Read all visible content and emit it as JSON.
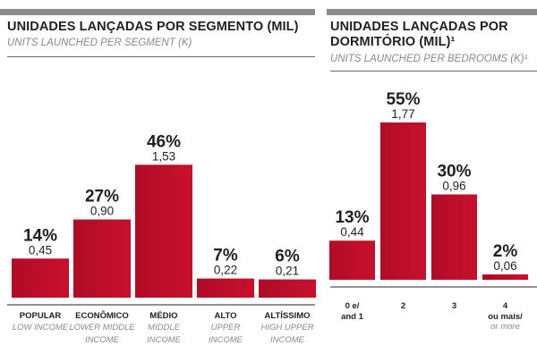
{
  "chart_data": [
    {
      "type": "bar",
      "title": "UNIDADES LANÇADAS POR SEGMENTO (MIL)",
      "subtitle": "UNITS LAUNCHED PER SEGMENT (K)",
      "categories": [
        {
          "pt": "POPULAR",
          "en": [
            "LOW INCOME"
          ]
        },
        {
          "pt": "ECONÔMICO",
          "en": [
            "LOWER MIDDLE",
            "INCOME"
          ]
        },
        {
          "pt": "MÉDIO",
          "en": [
            "MIDDLE",
            "INCOME"
          ]
        },
        {
          "pt": "ALTO",
          "en": [
            "UPPER",
            "INCOME"
          ]
        },
        {
          "pt": "ALTÍSSIMO",
          "en": [
            "HIGH UPPER",
            "INCOME"
          ]
        }
      ],
      "values": [
        0.45,
        0.9,
        1.53,
        0.22,
        0.21
      ],
      "value_labels": [
        "0,45",
        "0,90",
        "1,53",
        "0,22",
        "0,21"
      ],
      "percent_labels": [
        "14%",
        "27%",
        "46%",
        "7%",
        "6%"
      ],
      "bar_color": "#c8102e",
      "ylim": [
        0,
        1.77
      ],
      "grid": false
    },
    {
      "type": "bar",
      "title": "UNIDADES LANÇADAS POR DORMITÓRIO (MIL)¹",
      "subtitle": "UNITS LAUNCHED PER BEDROOMS (K)¹",
      "categories": [
        {
          "pt": "0 e/",
          "pt2": "and 1"
        },
        {
          "pt": "2"
        },
        {
          "pt": "3"
        },
        {
          "pt": "4",
          "pt2b": "ou mais/",
          "en": [
            "or more"
          ]
        }
      ],
      "values": [
        0.44,
        1.77,
        0.96,
        0.06
      ],
      "value_labels": [
        "0,44",
        "1,77",
        "0,96",
        "0,06"
      ],
      "percent_labels": [
        "13%",
        "55%",
        "30%",
        "2%"
      ],
      "bar_color": "#c8102e",
      "ylim": [
        0,
        1.77
      ],
      "grid": false
    }
  ]
}
